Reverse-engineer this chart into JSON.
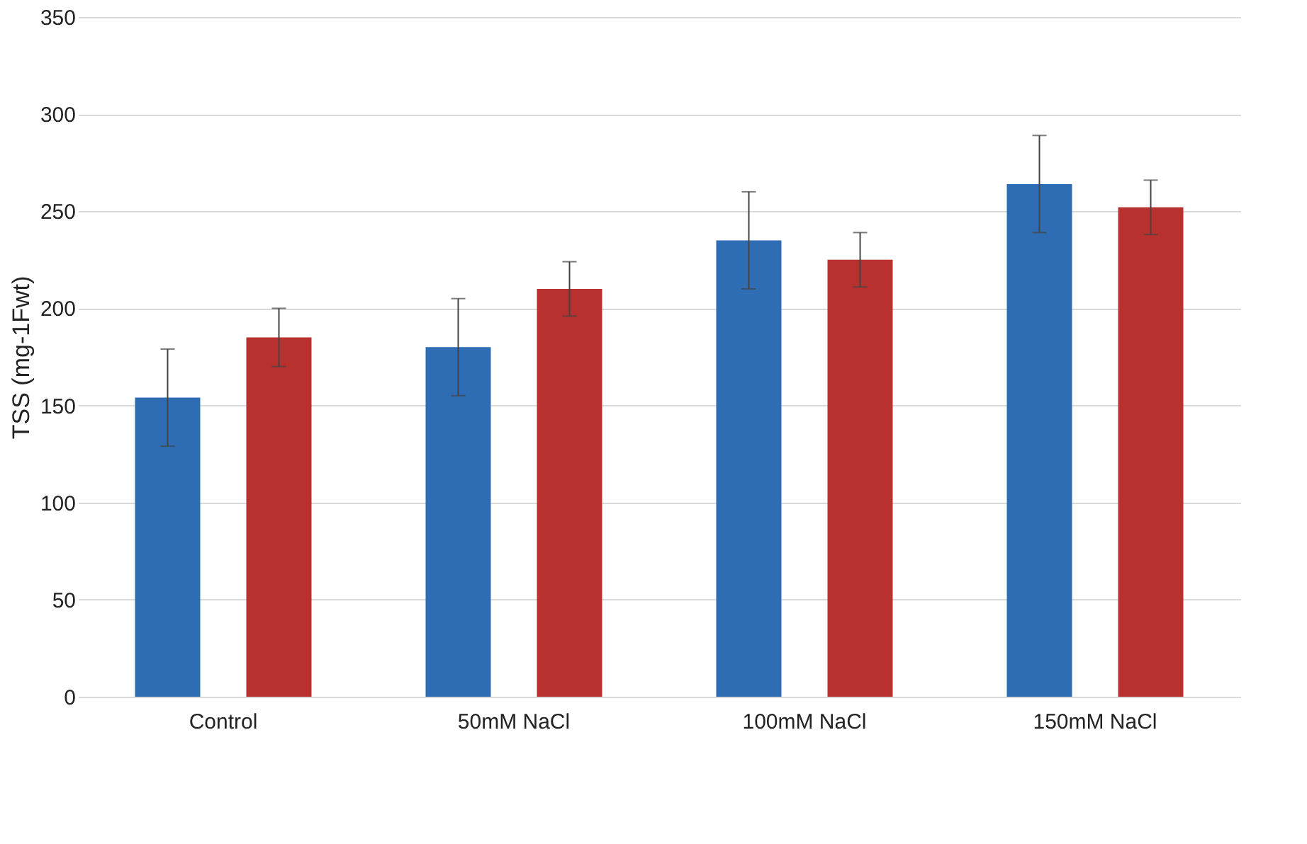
{
  "chart_data": {
    "type": "bar",
    "ylabel": "TSS (mg-1Fwt)",
    "categories": [
      "Control",
      "50mM  NaCl",
      "100mM  NaCl",
      "150mM  NaCl"
    ],
    "series": [
      {
        "color": "#2e6db4",
        "values": [
          154,
          180,
          235,
          264
        ],
        "errors": [
          25,
          25,
          25,
          25
        ]
      },
      {
        "color": "#b8312f",
        "values": [
          185,
          210,
          225,
          252
        ],
        "errors": [
          15,
          14,
          14,
          14
        ]
      }
    ],
    "ylim": [
      0,
      350
    ],
    "yticks": [
      0,
      50,
      100,
      150,
      200,
      250,
      300,
      350
    ],
    "grid": "y",
    "legend": false
  }
}
